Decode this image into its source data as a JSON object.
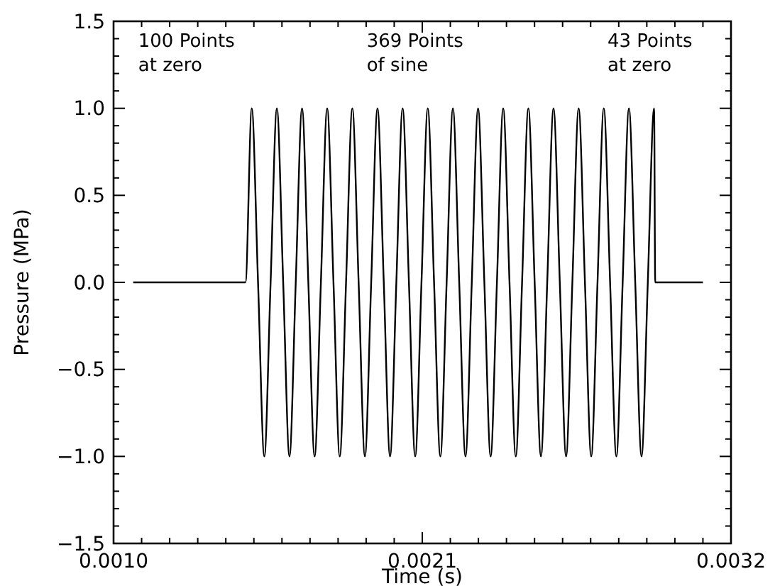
{
  "chart_data": {
    "type": "line",
    "xlabel": "Time (s)",
    "ylabel": "Pressure (MPa)",
    "annotations": [
      "100 Points\nat zero",
      "369 Points\nof sine",
      "43 Points\nat zero"
    ],
    "xlim": [
      0.001,
      0.0032
    ],
    "ylim": [
      -1.5,
      1.5
    ],
    "xticks": [
      {
        "value": 0.001,
        "label": "0.0010"
      },
      {
        "value": 0.0011,
        "label": null
      },
      {
        "value": 0.0012,
        "label": null
      },
      {
        "value": 0.0013,
        "label": null
      },
      {
        "value": 0.0014,
        "label": null
      },
      {
        "value": 0.0015,
        "label": null
      },
      {
        "value": 0.0016,
        "label": null
      },
      {
        "value": 0.0017,
        "label": null
      },
      {
        "value": 0.0018,
        "label": null
      },
      {
        "value": 0.0019,
        "label": null
      },
      {
        "value": 0.002,
        "label": null
      },
      {
        "value": 0.0021,
        "label": "0.0021"
      },
      {
        "value": 0.0022,
        "label": null
      },
      {
        "value": 0.0023,
        "label": null
      },
      {
        "value": 0.0024,
        "label": null
      },
      {
        "value": 0.0025,
        "label": null
      },
      {
        "value": 0.0026,
        "label": null
      },
      {
        "value": 0.0027,
        "label": null
      },
      {
        "value": 0.0028,
        "label": null
      },
      {
        "value": 0.0029,
        "label": null
      },
      {
        "value": 0.003,
        "label": null
      },
      {
        "value": 0.0031,
        "label": null
      },
      {
        "value": 0.0032,
        "label": "0.0032"
      }
    ],
    "yticks": [
      {
        "value": -1.5,
        "label": "−1.5"
      },
      {
        "value": -1.4,
        "label": null
      },
      {
        "value": -1.3,
        "label": null
      },
      {
        "value": -1.2,
        "label": null
      },
      {
        "value": -1.1,
        "label": null
      },
      {
        "value": -1.0,
        "label": "−1.0"
      },
      {
        "value": -0.9,
        "label": null
      },
      {
        "value": -0.8,
        "label": null
      },
      {
        "value": -0.7,
        "label": null
      },
      {
        "value": -0.6,
        "label": null
      },
      {
        "value": -0.5,
        "label": "−0.5"
      },
      {
        "value": -0.4,
        "label": null
      },
      {
        "value": -0.3,
        "label": null
      },
      {
        "value": -0.2,
        "label": null
      },
      {
        "value": -0.1,
        "label": null
      },
      {
        "value": 0,
        "label": "0.0"
      },
      {
        "value": 0.1,
        "label": null
      },
      {
        "value": 0.2,
        "label": null
      },
      {
        "value": 0.3,
        "label": null
      },
      {
        "value": 0.4,
        "label": null
      },
      {
        "value": 0.5,
        "label": "0.5"
      },
      {
        "value": 0.6,
        "label": null
      },
      {
        "value": 0.7,
        "label": null
      },
      {
        "value": 0.8,
        "label": null
      },
      {
        "value": 0.9,
        "label": null
      },
      {
        "value": 1.0,
        "label": "1.0"
      },
      {
        "value": 1.1,
        "label": null
      },
      {
        "value": 1.2,
        "label": null
      },
      {
        "value": 1.3,
        "label": null
      },
      {
        "value": 1.4,
        "label": null
      },
      {
        "value": 1.5,
        "label": "1.5"
      }
    ],
    "marker": "none",
    "line_style": "solid",
    "series": [
      {
        "color": "#000000",
        "x": [
          0.00107,
          0.00147,
          0.0014924,
          0.0015148,
          0.0015372,
          0.0015596,
          0.001582,
          0.0016044,
          0.0016268,
          0.0016492,
          0.0016716,
          0.001694,
          0.0017164,
          0.0017388,
          0.0017612,
          0.0017836,
          0.001806,
          0.0018284,
          0.0018508,
          0.0018732,
          0.0018956,
          0.001918,
          0.0019404,
          0.0019628,
          0.0019852,
          0.0020076,
          0.00203,
          0.0020524,
          0.0020748,
          0.0020972,
          0.0021196,
          0.002142,
          0.0021644,
          0.0021868,
          0.0022092,
          0.0022316,
          0.002254,
          0.0022764,
          0.0022988,
          0.0023212,
          0.0023436,
          0.002366,
          0.0023884,
          0.0024108,
          0.0024332,
          0.0024556,
          0.002478,
          0.0025004,
          0.0025228,
          0.0025452,
          0.0025676,
          0.00259,
          0.0026124,
          0.0026348,
          0.0026572,
          0.0026796,
          0.002702,
          0.0027244,
          0.0027468,
          0.0027692,
          0.0027916,
          0.002814,
          0.0028364,
          0.0028588,
          0.0028812,
          0.0029036,
          0.002926,
          0.00293,
          0.0031
        ],
        "values": [
          0,
          0,
          1,
          0,
          -1,
          0,
          1,
          0,
          -1,
          0,
          1,
          0,
          -1,
          0,
          1,
          0,
          -1,
          0,
          1,
          0,
          -1,
          0,
          1,
          0,
          -1,
          0,
          1,
          0,
          -1,
          0,
          1,
          0,
          -1,
          0,
          1,
          0,
          -1,
          0,
          1,
          0,
          -1,
          0,
          1,
          0,
          -1,
          0,
          1,
          0,
          -1,
          0,
          1,
          0,
          -1,
          0,
          1,
          0,
          -1,
          0,
          1,
          0,
          -1,
          0,
          1,
          0,
          -1,
          0,
          1,
          0,
          0
        ]
      }
    ]
  }
}
